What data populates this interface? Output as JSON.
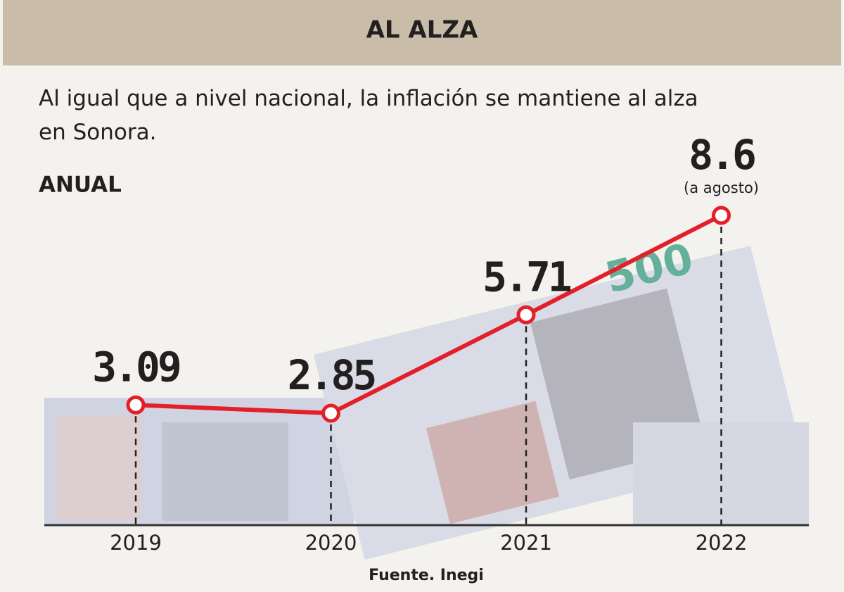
{
  "chart_data": {
    "type": "line",
    "title": "AL ALZA",
    "subtitle": "Al igual que a nivel nacional, la inflación se mantiene al alza en Sonora.",
    "label": "ANUAL",
    "categories": [
      "2019",
      "2020",
      "2021",
      "2022"
    ],
    "values": [
      3.09,
      2.85,
      5.71,
      8.6
    ],
    "color": "#e3202a",
    "annotation": "(a agosto)",
    "source": "Fuente. Inegi"
  }
}
